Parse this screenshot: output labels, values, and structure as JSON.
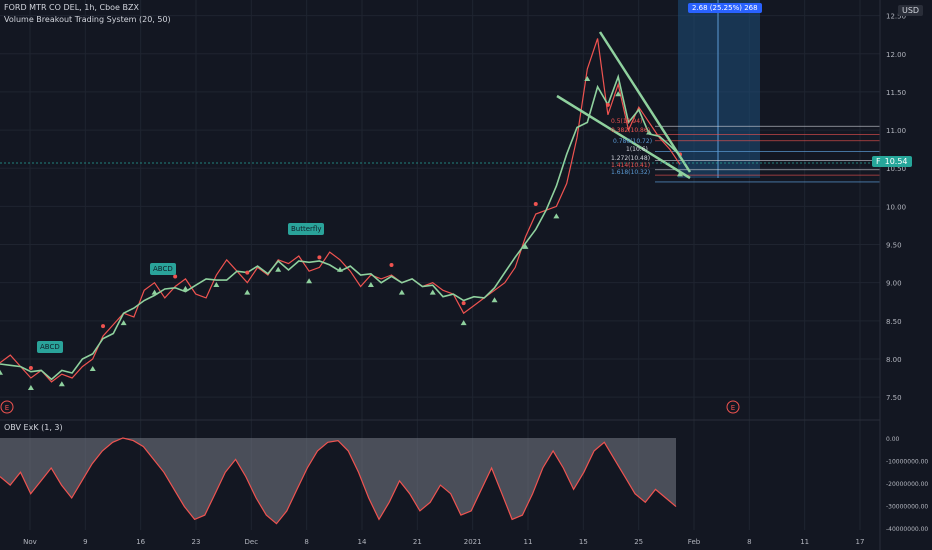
{
  "header": {
    "symbol_line": "FORD MTR CO DEL, 1h, Cboe BZX",
    "indicator_line": "Volume Breakout Trading System (20, 50)",
    "currency": "USD"
  },
  "measure_label": "2.68 (25.25%) 268",
  "last_price": {
    "symbol": "F",
    "value": "10.54"
  },
  "patterns": [
    "ABCD",
    "ABCD",
    "Butterfly"
  ],
  "fib_labels": [
    "0.5(10.94)",
    "0.382(10.86)",
    "0.786(10.72)",
    "1(10.6)",
    "1.272(10.48)",
    "1.414(10.41)",
    "1.618(10.32)"
  ],
  "earnings_markers": [
    "E",
    "E"
  ],
  "obv": {
    "title": "OBV ExK (1, 3)",
    "ticks": [
      "0.00",
      "-10000000.00",
      "-20000000.00",
      "-30000000.00",
      "-40000000.00"
    ]
  },
  "colors": {
    "background": "#131722",
    "up": "#26a69a",
    "down": "#ef5350",
    "trend": "#8fd19e",
    "obv_fill": "#787b86",
    "obv_line": "#ef5350",
    "measure": "#1e4f7a"
  },
  "chart_data": {
    "type": "line",
    "ylim": [
      7.2,
      12.6
    ],
    "y_ticks": [
      7.5,
      8.0,
      8.5,
      9.0,
      9.5,
      10.0,
      10.5,
      11.0,
      11.5,
      12.0,
      12.5
    ],
    "x_ticks": [
      "Nov",
      "9",
      "16",
      "23",
      "Dec",
      "8",
      "14",
      "21",
      "2021",
      "11",
      "15",
      "25",
      "Feb",
      "8",
      "11",
      "17"
    ],
    "series": [
      {
        "values": [
          7.95,
          8.05,
          7.9,
          7.75,
          7.85,
          7.7,
          7.8,
          7.75,
          7.9,
          8.0,
          8.3,
          8.45,
          8.6,
          8.55,
          8.9,
          9.0,
          8.8,
          8.95,
          9.05,
          8.85,
          8.8,
          9.1,
          9.3,
          9.15,
          9.0,
          9.2,
          9.1,
          9.3,
          9.25,
          9.35,
          9.15,
          9.2,
          9.4,
          9.3,
          9.15,
          8.95,
          9.1,
          9.05,
          9.1,
          9.0,
          9.05,
          8.95,
          9.0,
          8.9,
          8.85,
          8.6,
          8.7,
          8.8,
          8.9,
          9.0,
          9.2,
          9.6,
          9.9,
          9.95,
          10.0,
          10.3,
          10.9,
          11.8,
          12.2,
          11.2,
          11.6,
          11.0,
          11.3,
          11.1,
          10.9,
          10.75,
          10.55
        ]
      }
    ],
    "obv_values": [
      -0.4,
      -0.5,
      -0.35,
      -0.6,
      -0.45,
      -0.3,
      -0.5,
      -0.65,
      -0.45,
      -0.25,
      -0.1,
      0.0,
      0.05,
      0.02,
      -0.05,
      -0.2,
      -0.35,
      -0.55,
      -0.75,
      -0.9,
      -0.85,
      -0.6,
      -0.35,
      -0.2,
      -0.4,
      -0.65,
      -0.85,
      -0.95,
      -0.8,
      -0.55,
      -0.3,
      -0.1,
      0.0,
      0.02,
      -0.1,
      -0.35,
      -0.65,
      -0.9,
      -0.7,
      -0.45,
      -0.6,
      -0.8,
      -0.7,
      -0.5,
      -0.6,
      -0.85,
      -0.8,
      -0.55,
      -0.3,
      -0.6,
      -0.9,
      -0.85,
      -0.6,
      -0.3,
      -0.1,
      -0.3,
      -0.55,
      -0.35,
      -0.1,
      0.0,
      -0.2,
      -0.4,
      -0.6,
      -0.7,
      -0.55,
      -0.65,
      -0.75
    ]
  }
}
